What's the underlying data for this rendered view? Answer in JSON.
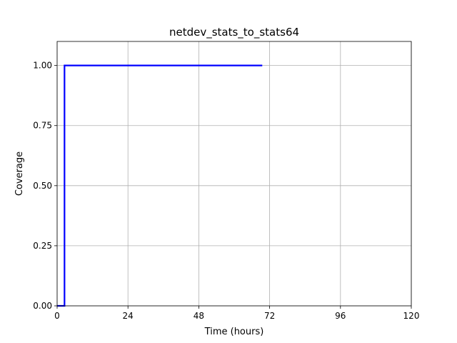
{
  "chart_data": {
    "type": "line",
    "title": "netdev_stats_to_stats64",
    "xlabel": "Time (hours)",
    "ylabel": "Coverage",
    "xlim": [
      0,
      120
    ],
    "ylim": [
      0,
      1.1
    ],
    "xticks": [
      0,
      24,
      48,
      72,
      96,
      120
    ],
    "xtick_labels": [
      "0",
      "24",
      "48",
      "72",
      "96",
      "120"
    ],
    "yticks": [
      0,
      0.25,
      0.5,
      0.75,
      1.0
    ],
    "ytick_labels": [
      "0.00",
      "0.25",
      "0.50",
      "0.75",
      "1.00"
    ],
    "grid": true,
    "series": [
      {
        "color": "#0000ff",
        "x": [
          0,
          2.5,
          2.5,
          69.5
        ],
        "y": [
          0,
          0,
          1.0,
          1.0
        ]
      }
    ]
  }
}
